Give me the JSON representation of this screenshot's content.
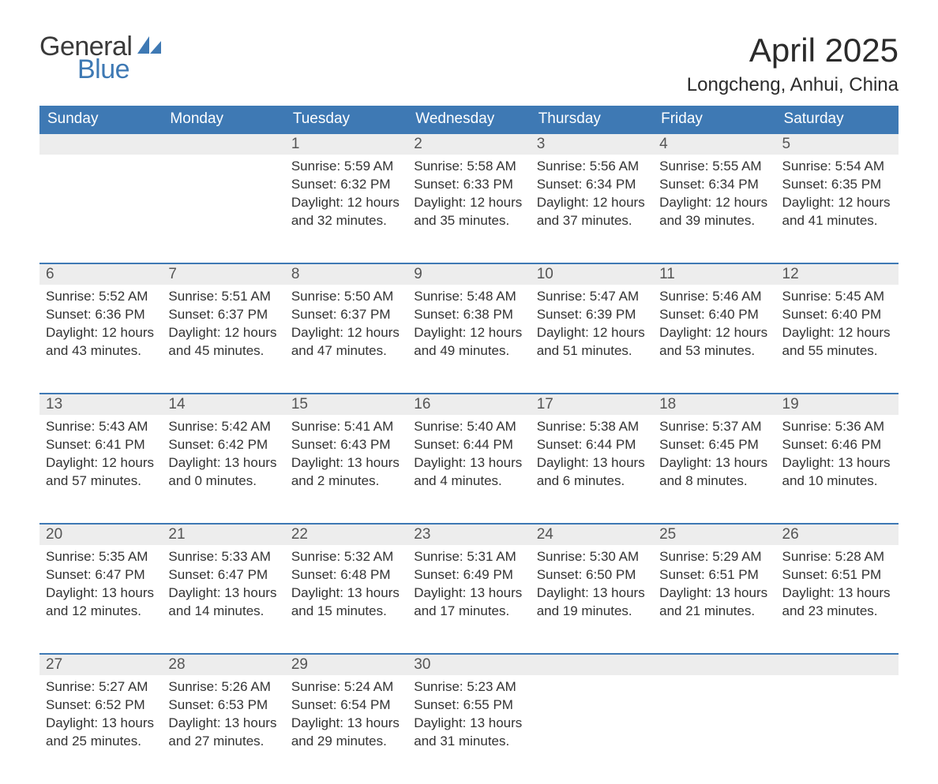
{
  "branding": {
    "logo_word1": "General",
    "logo_word2": "Blue",
    "logo_word1_color": "#3a3a3a",
    "logo_word2_color": "#3e79b4",
    "sail_color": "#3e79b4"
  },
  "header": {
    "month_title": "April 2025",
    "location": "Longcheng, Anhui, China"
  },
  "colors": {
    "header_bg": "#3e79b4",
    "header_text": "#ffffff",
    "daynum_bg": "#ededed",
    "daynum_text": "#555555",
    "body_text": "#333333",
    "row_divider": "#3e79b4",
    "page_bg": "#ffffff"
  },
  "typography": {
    "month_title_fontsize": 42,
    "location_fontsize": 24,
    "weekday_fontsize": 19,
    "daynum_fontsize": 19,
    "daycontent_fontsize": 17,
    "logo_fontsize": 34,
    "font_family": "Arial"
  },
  "calendar": {
    "type": "table",
    "columns": [
      "Sunday",
      "Monday",
      "Tuesday",
      "Wednesday",
      "Thursday",
      "Friday",
      "Saturday"
    ],
    "weeks": [
      [
        {
          "day": "",
          "sunrise": "",
          "sunset": "",
          "daylight": ""
        },
        {
          "day": "",
          "sunrise": "",
          "sunset": "",
          "daylight": ""
        },
        {
          "day": "1",
          "sunrise": "Sunrise: 5:59 AM",
          "sunset": "Sunset: 6:32 PM",
          "daylight": "Daylight: 12 hours and 32 minutes."
        },
        {
          "day": "2",
          "sunrise": "Sunrise: 5:58 AM",
          "sunset": "Sunset: 6:33 PM",
          "daylight": "Daylight: 12 hours and 35 minutes."
        },
        {
          "day": "3",
          "sunrise": "Sunrise: 5:56 AM",
          "sunset": "Sunset: 6:34 PM",
          "daylight": "Daylight: 12 hours and 37 minutes."
        },
        {
          "day": "4",
          "sunrise": "Sunrise: 5:55 AM",
          "sunset": "Sunset: 6:34 PM",
          "daylight": "Daylight: 12 hours and 39 minutes."
        },
        {
          "day": "5",
          "sunrise": "Sunrise: 5:54 AM",
          "sunset": "Sunset: 6:35 PM",
          "daylight": "Daylight: 12 hours and 41 minutes."
        }
      ],
      [
        {
          "day": "6",
          "sunrise": "Sunrise: 5:52 AM",
          "sunset": "Sunset: 6:36 PM",
          "daylight": "Daylight: 12 hours and 43 minutes."
        },
        {
          "day": "7",
          "sunrise": "Sunrise: 5:51 AM",
          "sunset": "Sunset: 6:37 PM",
          "daylight": "Daylight: 12 hours and 45 minutes."
        },
        {
          "day": "8",
          "sunrise": "Sunrise: 5:50 AM",
          "sunset": "Sunset: 6:37 PM",
          "daylight": "Daylight: 12 hours and 47 minutes."
        },
        {
          "day": "9",
          "sunrise": "Sunrise: 5:48 AM",
          "sunset": "Sunset: 6:38 PM",
          "daylight": "Daylight: 12 hours and 49 minutes."
        },
        {
          "day": "10",
          "sunrise": "Sunrise: 5:47 AM",
          "sunset": "Sunset: 6:39 PM",
          "daylight": "Daylight: 12 hours and 51 minutes."
        },
        {
          "day": "11",
          "sunrise": "Sunrise: 5:46 AM",
          "sunset": "Sunset: 6:40 PM",
          "daylight": "Daylight: 12 hours and 53 minutes."
        },
        {
          "day": "12",
          "sunrise": "Sunrise: 5:45 AM",
          "sunset": "Sunset: 6:40 PM",
          "daylight": "Daylight: 12 hours and 55 minutes."
        }
      ],
      [
        {
          "day": "13",
          "sunrise": "Sunrise: 5:43 AM",
          "sunset": "Sunset: 6:41 PM",
          "daylight": "Daylight: 12 hours and 57 minutes."
        },
        {
          "day": "14",
          "sunrise": "Sunrise: 5:42 AM",
          "sunset": "Sunset: 6:42 PM",
          "daylight": "Daylight: 13 hours and 0 minutes."
        },
        {
          "day": "15",
          "sunrise": "Sunrise: 5:41 AM",
          "sunset": "Sunset: 6:43 PM",
          "daylight": "Daylight: 13 hours and 2 minutes."
        },
        {
          "day": "16",
          "sunrise": "Sunrise: 5:40 AM",
          "sunset": "Sunset: 6:44 PM",
          "daylight": "Daylight: 13 hours and 4 minutes."
        },
        {
          "day": "17",
          "sunrise": "Sunrise: 5:38 AM",
          "sunset": "Sunset: 6:44 PM",
          "daylight": "Daylight: 13 hours and 6 minutes."
        },
        {
          "day": "18",
          "sunrise": "Sunrise: 5:37 AM",
          "sunset": "Sunset: 6:45 PM",
          "daylight": "Daylight: 13 hours and 8 minutes."
        },
        {
          "day": "19",
          "sunrise": "Sunrise: 5:36 AM",
          "sunset": "Sunset: 6:46 PM",
          "daylight": "Daylight: 13 hours and 10 minutes."
        }
      ],
      [
        {
          "day": "20",
          "sunrise": "Sunrise: 5:35 AM",
          "sunset": "Sunset: 6:47 PM",
          "daylight": "Daylight: 13 hours and 12 minutes."
        },
        {
          "day": "21",
          "sunrise": "Sunrise: 5:33 AM",
          "sunset": "Sunset: 6:47 PM",
          "daylight": "Daylight: 13 hours and 14 minutes."
        },
        {
          "day": "22",
          "sunrise": "Sunrise: 5:32 AM",
          "sunset": "Sunset: 6:48 PM",
          "daylight": "Daylight: 13 hours and 15 minutes."
        },
        {
          "day": "23",
          "sunrise": "Sunrise: 5:31 AM",
          "sunset": "Sunset: 6:49 PM",
          "daylight": "Daylight: 13 hours and 17 minutes."
        },
        {
          "day": "24",
          "sunrise": "Sunrise: 5:30 AM",
          "sunset": "Sunset: 6:50 PM",
          "daylight": "Daylight: 13 hours and 19 minutes."
        },
        {
          "day": "25",
          "sunrise": "Sunrise: 5:29 AM",
          "sunset": "Sunset: 6:51 PM",
          "daylight": "Daylight: 13 hours and 21 minutes."
        },
        {
          "day": "26",
          "sunrise": "Sunrise: 5:28 AM",
          "sunset": "Sunset: 6:51 PM",
          "daylight": "Daylight: 13 hours and 23 minutes."
        }
      ],
      [
        {
          "day": "27",
          "sunrise": "Sunrise: 5:27 AM",
          "sunset": "Sunset: 6:52 PM",
          "daylight": "Daylight: 13 hours and 25 minutes."
        },
        {
          "day": "28",
          "sunrise": "Sunrise: 5:26 AM",
          "sunset": "Sunset: 6:53 PM",
          "daylight": "Daylight: 13 hours and 27 minutes."
        },
        {
          "day": "29",
          "sunrise": "Sunrise: 5:24 AM",
          "sunset": "Sunset: 6:54 PM",
          "daylight": "Daylight: 13 hours and 29 minutes."
        },
        {
          "day": "30",
          "sunrise": "Sunrise: 5:23 AM",
          "sunset": "Sunset: 6:55 PM",
          "daylight": "Daylight: 13 hours and 31 minutes."
        },
        {
          "day": "",
          "sunrise": "",
          "sunset": "",
          "daylight": ""
        },
        {
          "day": "",
          "sunrise": "",
          "sunset": "",
          "daylight": ""
        },
        {
          "day": "",
          "sunrise": "",
          "sunset": "",
          "daylight": ""
        }
      ]
    ]
  }
}
